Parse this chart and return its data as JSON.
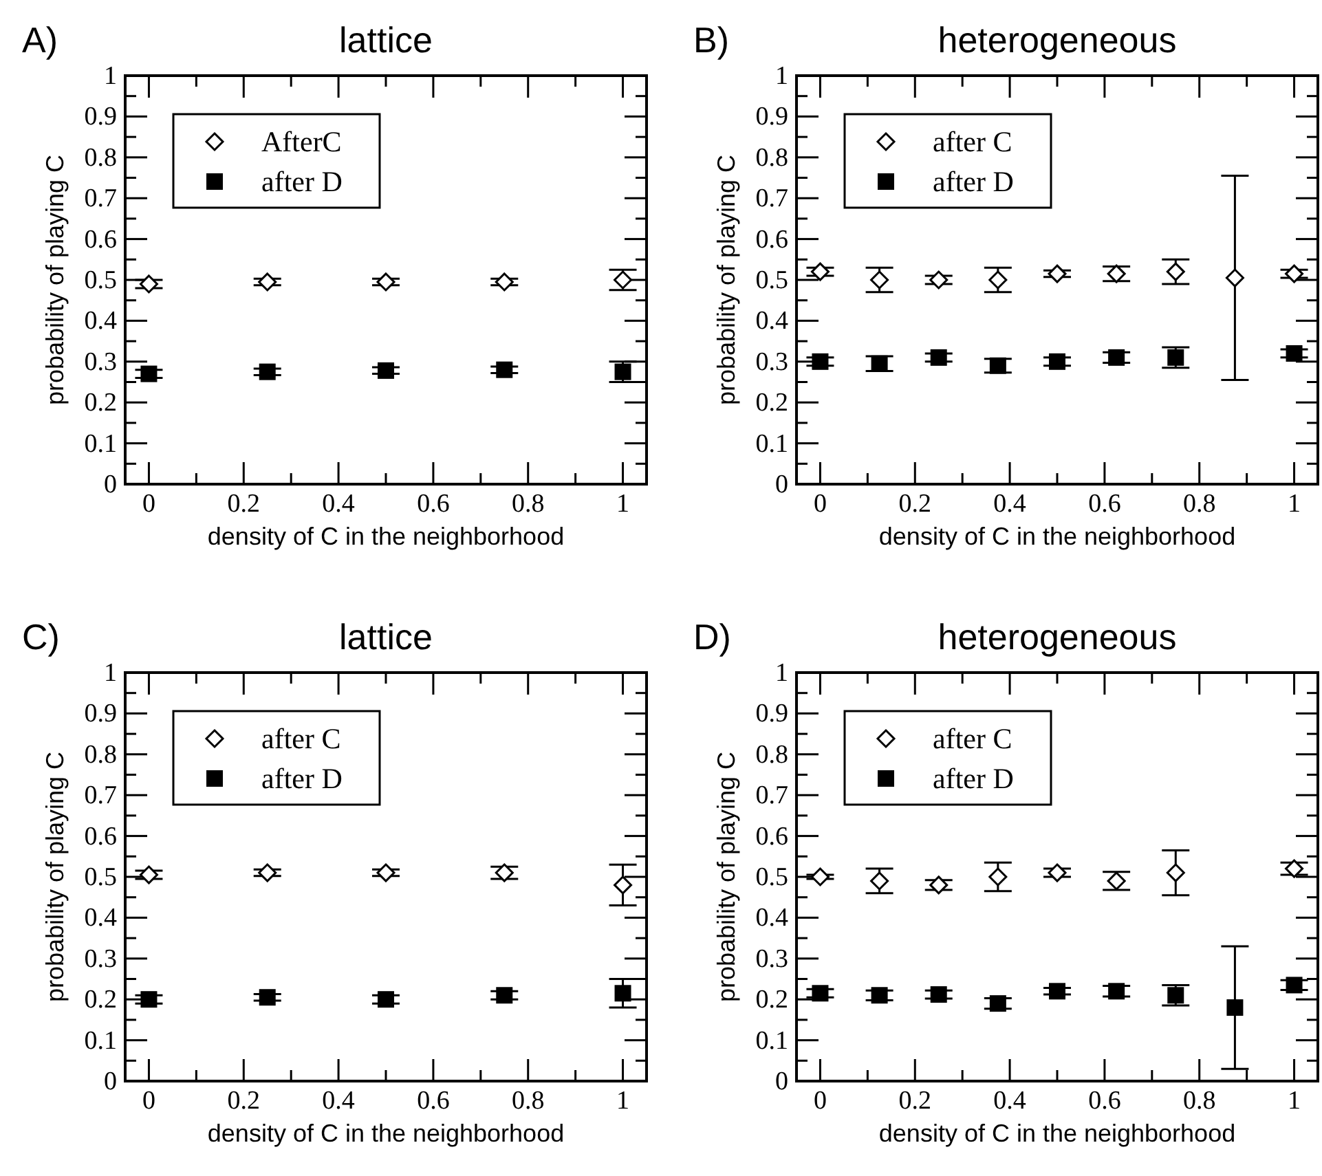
{
  "chart_data": [
    {
      "type": "scatter",
      "title": "lattice",
      "annotations": [
        "A)"
      ],
      "xlabel": "density of C in the neighborhood",
      "ylabel": "probability of playing C",
      "x": [
        0,
        0.25,
        0.5,
        0.75,
        1
      ],
      "xlim": [
        -0.05,
        1.05
      ],
      "ylim": [
        0,
        1
      ],
      "xticks": [
        0,
        {
          "value": 0.1,
          "label": null
        },
        0.2,
        {
          "value": 0.3,
          "label": null
        },
        0.4,
        {
          "value": 0.5,
          "label": null
        },
        0.6,
        {
          "value": 0.7,
          "label": null
        },
        0.8,
        {
          "value": 0.9,
          "label": null
        },
        1
      ],
      "yticks": [
        0,
        {
          "value": 0.05,
          "label": null
        },
        0.1,
        {
          "value": 0.15,
          "label": null
        },
        0.2,
        {
          "value": 0.25,
          "label": null
        },
        0.3,
        {
          "value": 0.35,
          "label": null
        },
        0.4,
        {
          "value": 0.45,
          "label": null
        },
        0.5,
        {
          "value": 0.55,
          "label": null
        },
        0.6,
        {
          "value": 0.65,
          "label": null
        },
        0.7,
        {
          "value": 0.75,
          "label": null
        },
        0.8,
        {
          "value": 0.85,
          "label": null
        },
        0.9,
        {
          "value": 0.95,
          "label": null
        },
        1
      ],
      "legend": "top left",
      "grid": false,
      "series": [
        {
          "name": "AfterC",
          "color": "#000000",
          "marker": "diamond",
          "values": [
            0.49,
            0.495,
            0.495,
            0.495,
            0.5
          ],
          "errors": [
            0.01,
            0.008,
            0.008,
            0.008,
            0.025
          ]
        },
        {
          "name": "after D",
          "color": "#000000",
          "marker": "square",
          "values": [
            0.27,
            0.275,
            0.278,
            0.28,
            0.275
          ],
          "errors": [
            0.01,
            0.008,
            0.008,
            0.008,
            0.025
          ]
        }
      ]
    },
    {
      "type": "scatter",
      "title": "heterogeneous",
      "annotations": [
        "B)"
      ],
      "xlabel": "density of C in the neighborhood",
      "ylabel": "probability of playing C",
      "x": [
        0,
        0.125,
        0.25,
        0.375,
        0.5,
        0.625,
        0.75,
        0.875,
        1
      ],
      "xlim": [
        -0.05,
        1.05
      ],
      "ylim": [
        0,
        1
      ],
      "xticks": [
        0,
        {
          "value": 0.1,
          "label": null
        },
        0.2,
        {
          "value": 0.3,
          "label": null
        },
        0.4,
        {
          "value": 0.5,
          "label": null
        },
        0.6,
        {
          "value": 0.7,
          "label": null
        },
        0.8,
        {
          "value": 0.9,
          "label": null
        },
        1
      ],
      "yticks": [
        0,
        {
          "value": 0.05,
          "label": null
        },
        0.1,
        {
          "value": 0.15,
          "label": null
        },
        0.2,
        {
          "value": 0.25,
          "label": null
        },
        0.3,
        {
          "value": 0.35,
          "label": null
        },
        0.4,
        {
          "value": 0.45,
          "label": null
        },
        0.5,
        {
          "value": 0.55,
          "label": null
        },
        0.6,
        {
          "value": 0.65,
          "label": null
        },
        0.7,
        {
          "value": 0.75,
          "label": null
        },
        0.8,
        {
          "value": 0.85,
          "label": null
        },
        0.9,
        {
          "value": 0.95,
          "label": null
        },
        1
      ],
      "legend": "top left",
      "grid": false,
      "series": [
        {
          "name": "after C",
          "color": "#000000",
          "marker": "diamond",
          "values": [
            0.52,
            0.5,
            0.5,
            0.5,
            0.515,
            0.515,
            0.52,
            0.505,
            0.515
          ],
          "errors": [
            0.01,
            0.03,
            0.01,
            0.03,
            0.008,
            0.018,
            0.03,
            0.25,
            0.01
          ]
        },
        {
          "name": "after D",
          "color": "#000000",
          "marker": "square",
          "values": [
            0.3,
            0.295,
            0.31,
            0.29,
            0.3,
            0.31,
            0.31,
            null,
            0.32
          ],
          "errors": [
            0.01,
            0.018,
            0.01,
            0.017,
            0.01,
            0.013,
            0.025,
            null,
            0.01
          ]
        }
      ]
    },
    {
      "type": "scatter",
      "title": "lattice",
      "annotations": [
        "C)"
      ],
      "xlabel": "density of C in the neighborhood",
      "ylabel": "probability of playing C",
      "x": [
        0,
        0.25,
        0.5,
        0.75,
        1
      ],
      "xlim": [
        -0.05,
        1.05
      ],
      "ylim": [
        0,
        1
      ],
      "xticks": [
        0,
        {
          "value": 0.1,
          "label": null
        },
        0.2,
        {
          "value": 0.3,
          "label": null
        },
        0.4,
        {
          "value": 0.5,
          "label": null
        },
        0.6,
        {
          "value": 0.7,
          "label": null
        },
        0.8,
        {
          "value": 0.9,
          "label": null
        },
        1
      ],
      "yticks": [
        0,
        {
          "value": 0.05,
          "label": null
        },
        0.1,
        {
          "value": 0.15,
          "label": null
        },
        0.2,
        {
          "value": 0.25,
          "label": null
        },
        0.3,
        {
          "value": 0.35,
          "label": null
        },
        0.4,
        {
          "value": 0.45,
          "label": null
        },
        0.5,
        {
          "value": 0.55,
          "label": null
        },
        0.6,
        {
          "value": 0.65,
          "label": null
        },
        0.7,
        {
          "value": 0.75,
          "label": null
        },
        0.8,
        {
          "value": 0.85,
          "label": null
        },
        0.9,
        {
          "value": 0.95,
          "label": null
        },
        1
      ],
      "legend": "top left",
      "grid": false,
      "series": [
        {
          "name": "after C",
          "color": "#000000",
          "marker": "diamond",
          "values": [
            0.505,
            0.51,
            0.51,
            0.51,
            0.48
          ],
          "errors": [
            0.01,
            0.008,
            0.008,
            0.015,
            0.05
          ]
        },
        {
          "name": "after D",
          "color": "#000000",
          "marker": "square",
          "values": [
            0.2,
            0.205,
            0.2,
            0.21,
            0.215
          ],
          "errors": [
            0.01,
            0.008,
            0.01,
            0.01,
            0.035
          ]
        }
      ]
    },
    {
      "type": "scatter",
      "title": "heterogeneous",
      "annotations": [
        "D)"
      ],
      "xlabel": "density of C in the neighborhood",
      "ylabel": "probability of playing C",
      "x": [
        0,
        0.125,
        0.25,
        0.375,
        0.5,
        0.625,
        0.75,
        0.875,
        1
      ],
      "xlim": [
        -0.05,
        1.05
      ],
      "ylim": [
        0,
        1
      ],
      "xticks": [
        0,
        {
          "value": 0.1,
          "label": null
        },
        0.2,
        {
          "value": 0.3,
          "label": null
        },
        0.4,
        {
          "value": 0.5,
          "label": null
        },
        0.6,
        {
          "value": 0.7,
          "label": null
        },
        0.8,
        {
          "value": 0.9,
          "label": null
        },
        1
      ],
      "yticks": [
        0,
        {
          "value": 0.05,
          "label": null
        },
        0.1,
        {
          "value": 0.15,
          "label": null
        },
        0.2,
        {
          "value": 0.25,
          "label": null
        },
        0.3,
        {
          "value": 0.35,
          "label": null
        },
        0.4,
        {
          "value": 0.45,
          "label": null
        },
        0.5,
        {
          "value": 0.55,
          "label": null
        },
        0.6,
        {
          "value": 0.65,
          "label": null
        },
        0.7,
        {
          "value": 0.75,
          "label": null
        },
        0.8,
        {
          "value": 0.85,
          "label": null
        },
        0.9,
        {
          "value": 0.95,
          "label": null
        },
        1
      ],
      "legend": "top left",
      "grid": false,
      "series": [
        {
          "name": "after C",
          "color": "#000000",
          "marker": "diamond",
          "values": [
            0.5,
            0.49,
            0.48,
            0.5,
            0.51,
            0.49,
            0.51,
            null,
            0.52
          ],
          "errors": [
            0.005,
            0.03,
            0.012,
            0.035,
            0.01,
            0.022,
            0.055,
            null,
            0.015
          ]
        },
        {
          "name": "after D",
          "color": "#000000",
          "marker": "square",
          "values": [
            0.215,
            0.21,
            0.212,
            0.19,
            0.22,
            0.22,
            0.21,
            0.18,
            0.235
          ],
          "errors": [
            0.01,
            0.012,
            0.01,
            0.013,
            0.008,
            0.013,
            0.025,
            0.15,
            0.012
          ]
        }
      ]
    }
  ]
}
